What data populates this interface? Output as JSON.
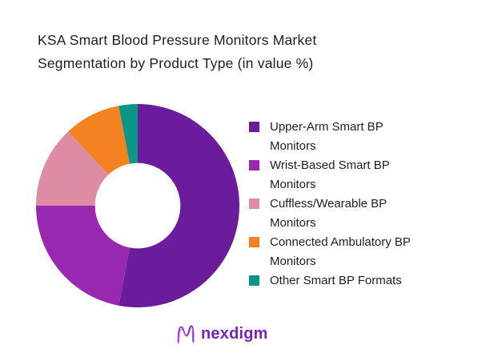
{
  "title_lines": [
    "KSA Smart Blood Pressure Monitors Market",
    "Segmentation by Product Type (in value %)"
  ],
  "chart_data": {
    "type": "pie",
    "subtype": "donut",
    "title": "KSA Smart Blood Pressure Monitors Market Segmentation by Product Type (in value %)",
    "unit": "percent_of_value",
    "categories": [
      "Upper-Arm Smart BP Monitors",
      "Wrist-Based Smart BP Monitors",
      "Cuffless/Wearable BP Monitors",
      "Connected Ambulatory BP Monitors",
      "Other Smart BP Formats"
    ],
    "values": [
      53,
      22,
      13,
      9,
      3
    ],
    "colors": [
      "#6A1C9C",
      "#9928B1",
      "#DE8CA4",
      "#F58220",
      "#0B9488"
    ],
    "start_angle_deg": 0,
    "direction": "clockwise",
    "inner_radius_ratio": 0.42,
    "legend_position": "right",
    "data_labels": false,
    "grid": false
  },
  "logo": {
    "text": "nexdigm",
    "wordmark_color": "#7e22bc",
    "icon": "nexdigm-wave-icon",
    "icon_colors": [
      "#5E17A8",
      "#9C27D9",
      "#B54BE0"
    ]
  }
}
